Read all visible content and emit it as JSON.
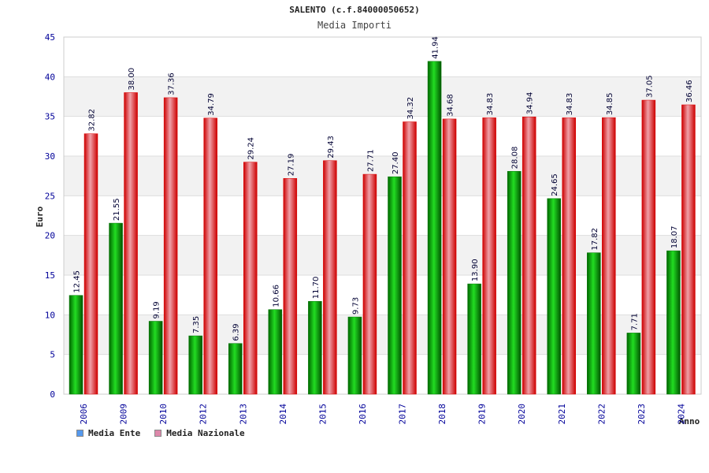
{
  "chart_data": {
    "type": "bar",
    "title": "SALENTO (c.f.84000050652)",
    "subtitle": "Media Importi",
    "ylabel": "Euro",
    "xlabel": "Anno",
    "ylim": [
      0,
      45
    ],
    "yticks": [
      0,
      5,
      10,
      15,
      20,
      25,
      30,
      35,
      40,
      45
    ],
    "categories": [
      "2006",
      "2009",
      "2010",
      "2012",
      "2013",
      "2014",
      "2015",
      "2016",
      "2017",
      "2018",
      "2019",
      "2020",
      "2021",
      "2022",
      "2023",
      "2024"
    ],
    "series": [
      {
        "name": "Media Ente",
        "swatch": "#5599ee",
        "color": "#00aa00",
        "values": [
          12.45,
          21.55,
          9.19,
          7.35,
          6.39,
          10.66,
          11.7,
          9.73,
          27.4,
          41.94,
          13.9,
          28.08,
          24.65,
          17.82,
          7.71,
          18.07
        ],
        "labels": [
          "12.45",
          "21.55",
          "9.19",
          "7.35",
          "6.39",
          "10.66",
          "11.70",
          "9.73",
          "27.40",
          "41.94",
          "13.90",
          "28.08",
          "24.65",
          "17.82",
          "7.71",
          "18.07"
        ]
      },
      {
        "name": "Media Nazionale",
        "swatch": "#dd88aa",
        "color": "#ee2222",
        "values": [
          32.82,
          38.0,
          37.36,
          34.79,
          29.24,
          27.19,
          29.43,
          27.71,
          34.32,
          34.68,
          34.83,
          34.94,
          34.83,
          34.85,
          37.05,
          36.46
        ],
        "labels": [
          "32.82",
          "38.00",
          "37.36",
          "34.79",
          "29.24",
          "27.19",
          "29.43",
          "27.71",
          "34.32",
          "34.68",
          "34.83",
          "34.94",
          "34.83",
          "34.85",
          "37.05",
          "36.46"
        ]
      }
    ]
  }
}
